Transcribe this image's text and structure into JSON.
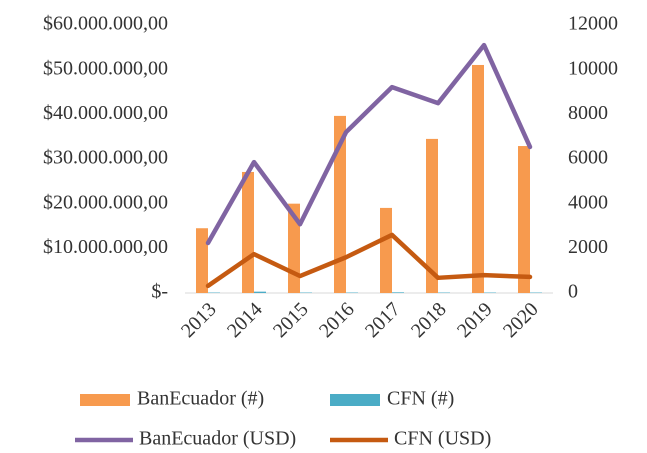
{
  "chart_data": {
    "type": "bar_line",
    "categories": [
      "2013",
      "2014",
      "2015",
      "2016",
      "2017",
      "2018",
      "2019",
      "2020"
    ],
    "series": [
      {
        "name": "BanEcuador (#)",
        "type": "bar",
        "axis": "y2",
        "color": "#f79a4e",
        "values": [
          2900,
          5420,
          4000,
          7930,
          3810,
          6900,
          10210,
          6580
        ]
      },
      {
        "name": "CFN (#)",
        "type": "bar",
        "axis": "y2",
        "color": "#4bacc6",
        "values": [
          20,
          60,
          20,
          20,
          30,
          20,
          20,
          20
        ]
      },
      {
        "name": "BanEcuador (USD)",
        "type": "line",
        "axis": "y",
        "color": "#8064a2",
        "values": [
          11200000,
          29300000,
          15400000,
          36000000,
          46100000,
          42500000,
          55500000,
          32700000
        ]
      },
      {
        "name": "CFN (USD)",
        "type": "line",
        "axis": "y",
        "color": "#c55a11",
        "values": [
          1600000,
          8700000,
          3800000,
          8000000,
          13000000,
          3400000,
          4000000,
          3600000
        ]
      }
    ],
    "ylim": [
      0,
      60000000
    ],
    "yticks": [
      {
        "value": 0,
        "label": "$-"
      },
      {
        "value": 10000000,
        "label": "$10.000.000,00"
      },
      {
        "value": 20000000,
        "label": "$20.000.000,00"
      },
      {
        "value": 30000000,
        "label": "$30.000.000,00"
      },
      {
        "value": 40000000,
        "label": "$40.000.000,00"
      },
      {
        "value": 50000000,
        "label": "$50.000.000,00"
      },
      {
        "value": 60000000,
        "label": "$60.000.000,00"
      }
    ],
    "y2lim": [
      0,
      12000
    ],
    "y2ticks": [
      0,
      2000,
      4000,
      6000,
      8000,
      10000,
      12000
    ],
    "grid": false
  }
}
